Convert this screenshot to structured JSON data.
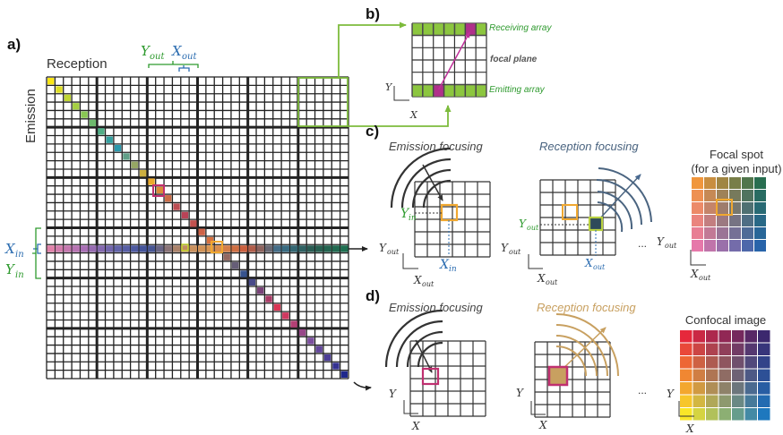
{
  "panel_labels": {
    "a": "a)",
    "b": "b)",
    "c": "c)",
    "d": "d)"
  },
  "matrix": {
    "reception_label": "Reception",
    "emission_label": "Emission",
    "x_in": "X",
    "x_in_sub": "in",
    "y_in": "Y",
    "y_in_sub": "in",
    "y_out": "Y",
    "y_out_sub": "out",
    "x_out": "X",
    "x_out_sub": "out"
  },
  "panel_b": {
    "receiving_array": "Receiving array",
    "focal_plane": "focal plane",
    "emitting_array": "Emitting array",
    "axis_y": "Y",
    "axis_x": "X"
  },
  "panel_c": {
    "emission_focusing": "Emission focusing",
    "reception_focusing": "Reception focusing",
    "focal_spot_line1": "Focal spot",
    "focal_spot_line2": "(for a given input)",
    "y_in": "Y",
    "y_in_sub": "in",
    "x_in": "X",
    "x_in_sub": "in",
    "y_out": "Y",
    "y_out_sub": "out",
    "x_out": "X",
    "x_out_sub": "out",
    "ellipsis": "..."
  },
  "panel_d": {
    "emission_focusing": "Emission focusing",
    "reception_focusing": "Reception focusing",
    "confocal_image": "Confocal image",
    "axis_y": "Y",
    "axis_x": "X",
    "ellipsis": "..."
  },
  "colors": {
    "green": "#7dbb3c",
    "green_text": "#2e9a2e",
    "orange_box": "#f0a830",
    "blue": "#2b6cb0",
    "magenta": "#b0308a",
    "tan": "#c8a060",
    "slate": "#5a6a7a"
  }
}
